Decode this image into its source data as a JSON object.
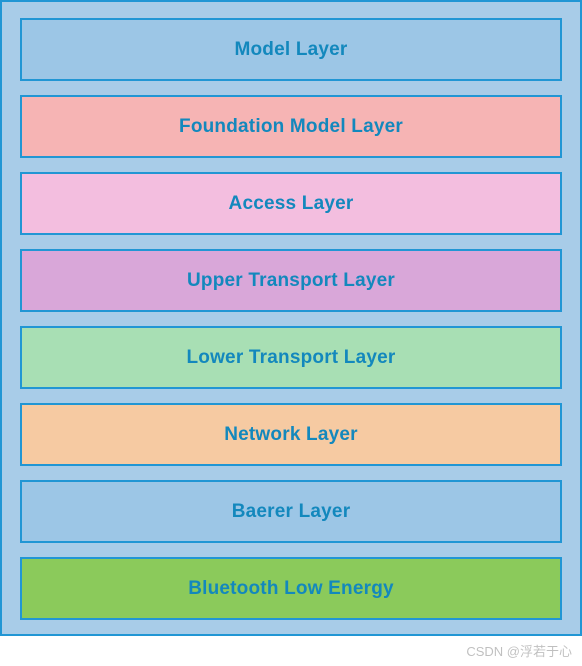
{
  "diagram": {
    "type": "stacked-layers",
    "container": {
      "background_color": "#a8cce8",
      "border_color": "#2196d4",
      "border_width": 2,
      "padding": 16,
      "gap": 14
    },
    "layer_style": {
      "height": 63,
      "border_color": "#2196d4",
      "border_width": 2,
      "text_color": "#1388bd",
      "font_size": 19,
      "font_weight": 600
    },
    "layers": [
      {
        "label": "Model Layer",
        "background_color": "#9cc6e6"
      },
      {
        "label": "Foundation Model Layer",
        "background_color": "#f6b4b4"
      },
      {
        "label": "Access Layer",
        "background_color": "#f3bedf"
      },
      {
        "label": "Upper Transport Layer",
        "background_color": "#d9a7d9"
      },
      {
        "label": "Lower Transport Layer",
        "background_color": "#a8dfb4"
      },
      {
        "label": "Network Layer",
        "background_color": "#f6caa2"
      },
      {
        "label": "Baerer Layer",
        "background_color": "#9cc6e6"
      },
      {
        "label": "Bluetooth Low Energy",
        "background_color": "#8bca5b"
      }
    ]
  },
  "watermark": "CSDN @浮若于心"
}
